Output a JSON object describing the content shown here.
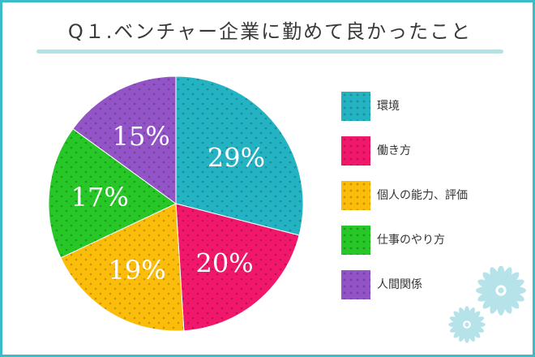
{
  "title": "Q１.ベンチャー企業に勤めて良かったこと",
  "colors": {
    "border": "#3bbcc8",
    "underline": "#aee3e8",
    "flower": "#b6e3ea"
  },
  "chart_data": {
    "type": "pie",
    "start_angle_deg": 0,
    "direction": "clockwise",
    "slices": [
      {
        "label": "環境",
        "value": 29,
        "value_label": "29%",
        "color": "#24b3c3"
      },
      {
        "label": "働き方",
        "value": 20,
        "value_label": "20%",
        "color": "#f1176a"
      },
      {
        "label": "個人の能力、評価",
        "value": 19,
        "value_label": "19%",
        "color": "#fbbd0a"
      },
      {
        "label": "仕事のやり方",
        "value": 17,
        "value_label": "17%",
        "color": "#27c728"
      },
      {
        "label": "人間関係",
        "value": 15,
        "value_label": "15%",
        "color": "#9354c8"
      }
    ],
    "legend_position": "right"
  }
}
